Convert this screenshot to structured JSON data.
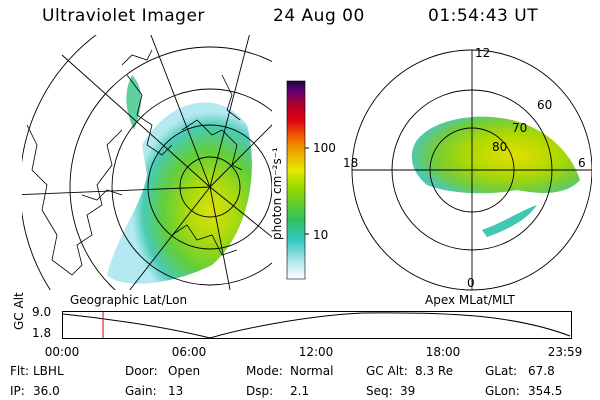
{
  "header": {
    "title": "Ultraviolet Imager",
    "date": "24 Aug 00",
    "time": "01:54:43 UT"
  },
  "colorbar": {
    "unit": "photon cm⁻²s⁻¹",
    "ticks": [
      {
        "label": "100",
        "value": 100
      },
      {
        "label": "10",
        "value": 10
      }
    ]
  },
  "panels": {
    "left_label": "Geographic Lat/Lon",
    "right_label": "Apex MLat/MLT"
  },
  "polar_plot": {
    "lat_labels": [
      "60",
      "70",
      "80"
    ],
    "mlt_labels": {
      "top": "12",
      "left": "18",
      "right": "6",
      "bottom": "0"
    }
  },
  "altitude_plot": {
    "axis_title": "GC Alt",
    "y_ticks": [
      "9.0",
      "1.8"
    ],
    "x_ticks": [
      "00:00",
      "06:00",
      "12:00",
      "18:00",
      "23:59"
    ],
    "current_time_hours": 1.912
  },
  "status": {
    "filter_label": "Flt:",
    "filter_value": "LBHL",
    "ip_label": "IP:",
    "ip_value": "36.0",
    "door_label": "Door:",
    "door_value": "Open",
    "gain_label": "Gain:",
    "gain_value": "13",
    "mode_label": "Mode:",
    "mode_value": "Normal",
    "dsp_label": "Dsp:",
    "dsp_value": "2.1",
    "gcalt_label": "GC Alt:",
    "gcalt_value": "8.3 Re",
    "seq_label": "Seq:",
    "seq_value": "39",
    "glat_label": "GLat:",
    "glat_value": "67.8",
    "glon_label": "GLon:",
    "glon_value": "354.5"
  }
}
